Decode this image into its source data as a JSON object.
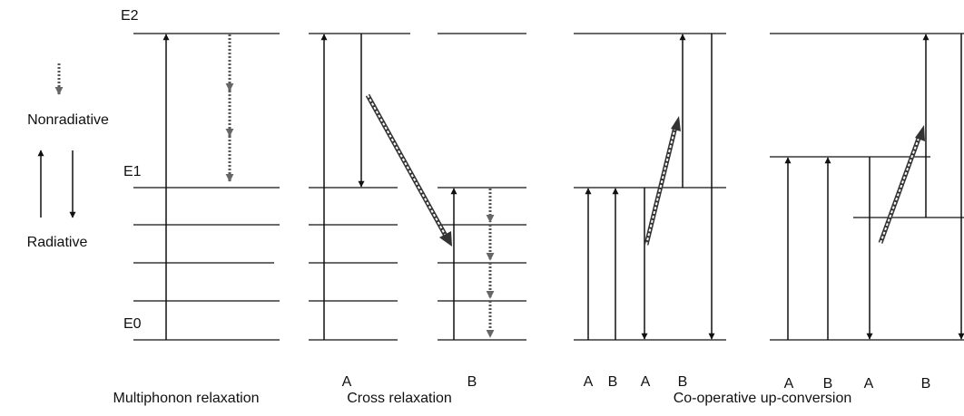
{
  "levels": {
    "e2": "E2",
    "e1": "E1",
    "e0": "E0"
  },
  "legend": {
    "nonradiative": "Nonradiative",
    "radiative": "Radiative"
  },
  "panels": [
    {
      "caption": "Multiphonon relaxation"
    },
    {
      "caption": "Cross relaxation",
      "labels": [
        "A",
        "B"
      ]
    },
    {
      "caption": "Co-operative up-conversion",
      "labels": [
        "A",
        "B",
        "A",
        "B",
        "A",
        "B",
        "A",
        "B"
      ]
    }
  ]
}
